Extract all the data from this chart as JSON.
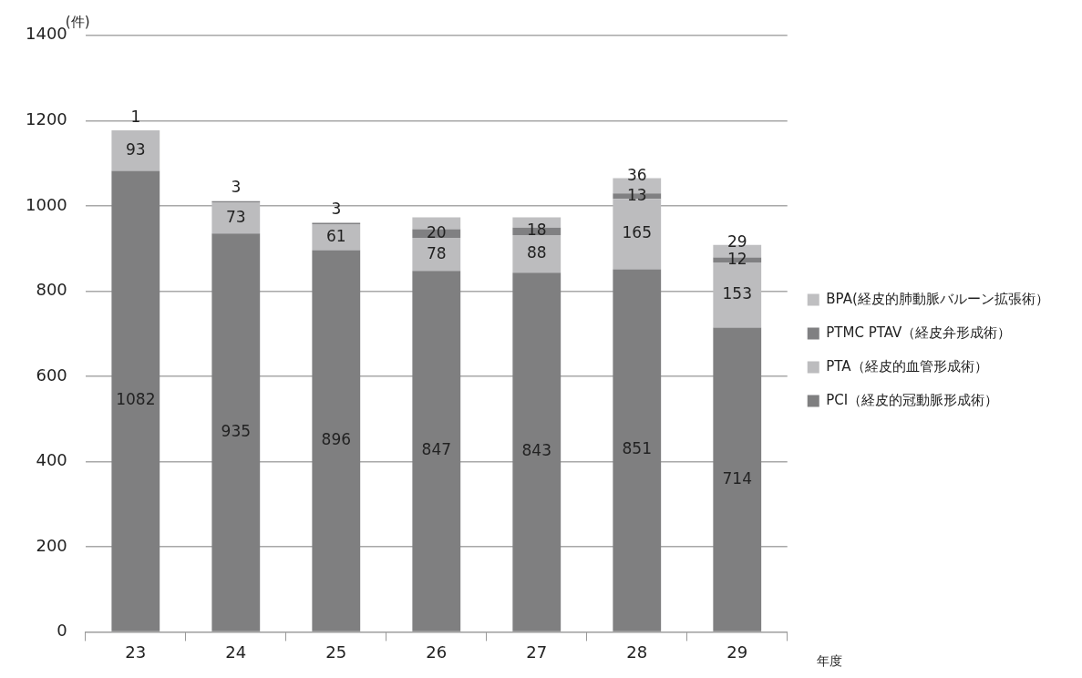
{
  "chart_data": {
    "type": "bar",
    "stacked": true,
    "ylabel": "(件)",
    "xlabel": "年度",
    "categories": [
      "23",
      "24",
      "25",
      "26",
      "27",
      "28",
      "29"
    ],
    "series": [
      {
        "name": "PCI（経皮的冠動脈形成術）",
        "color": "#7f7f80",
        "values": [
          1082,
          935,
          896,
          847,
          843,
          851,
          714
        ],
        "value_labels": [
          "1082",
          "935",
          "896",
          "847",
          "843",
          "851",
          "714"
        ]
      },
      {
        "name": "PTA（経皮的血管形成術）",
        "color": "#bcbcbe",
        "values": [
          93,
          73,
          61,
          78,
          88,
          165,
          153
        ],
        "value_labels": [
          "93",
          "73",
          "61",
          "78",
          "88",
          "165",
          "153"
        ]
      },
      {
        "name": "PTMC PTAV（経皮弁形成術）",
        "color": "#808082",
        "values": [
          1,
          3,
          3,
          20,
          18,
          13,
          12
        ],
        "value_labels": [
          "1",
          "3",
          "3",
          "20",
          "18",
          "13",
          "12"
        ]
      },
      {
        "name": "BPA(経皮的肺動脈バルーン拡張術）",
        "color": "#bfbfc1",
        "values": [
          null,
          null,
          null,
          28,
          24,
          36,
          29
        ],
        "value_labels": [
          null,
          null,
          null,
          null,
          null,
          "36",
          "29"
        ]
      }
    ],
    "ylim": [
      0,
      1400
    ],
    "yticks": [
      0,
      200,
      400,
      600,
      800,
      1000,
      1200,
      1400
    ],
    "grid": "y",
    "legend": "right"
  }
}
